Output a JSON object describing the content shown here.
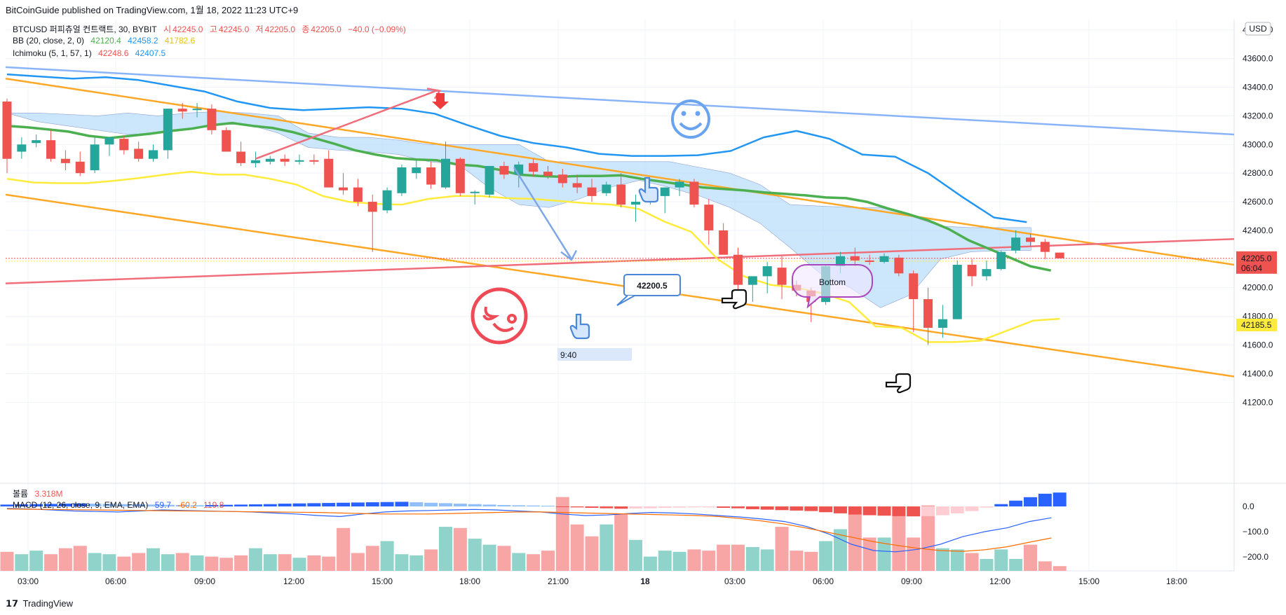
{
  "header": {
    "published": "BitCoinGuide published on TradingView.com, 1월 18, 2022 11:23 UTC+9"
  },
  "legend": {
    "symbol": "BTCUSD 퍼피츄얼 컨트랙트, 30, BYBIT",
    "ohlc": [
      {
        "label": "시",
        "value": "42245.0"
      },
      {
        "label": "고",
        "value": "42245.0"
      },
      {
        "label": "저",
        "value": "42205.0"
      },
      {
        "label": "종",
        "value": "42205.0"
      }
    ],
    "change": "−40.0 (−0.09%)",
    "bb_label": "BB (20, close, 2, 0)",
    "bb_values": [
      "42120.4",
      "42458.2",
      "41782.6"
    ],
    "ichimoku_label": "Ichimoku (5, 1, 57, 1)",
    "ichimoku_values": [
      "42248.6",
      "42407.5"
    ],
    "volume_label": "볼륨",
    "volume_value": "3.318M",
    "macd_label": "MACD (12, 26, close, 9, EMA, EMA)",
    "macd_values": [
      "59.7",
      "-60.2",
      "119.8"
    ]
  },
  "annotations": {
    "price_callout": "42200.5",
    "bottom_label": "Bottom",
    "time_label": "9:40"
  },
  "price_axis": {
    "currency": "USD",
    "ticks": [
      "43800.0",
      "43600.0",
      "43400.0",
      "43200.0",
      "43000.0",
      "42800.0",
      "42600.0",
      "42400.0",
      "42200.0",
      "42000.0",
      "41800.0",
      "41600.0",
      "41400.0",
      "41200.0"
    ],
    "last_price": "42205.0",
    "countdown": "06:04",
    "bb_price": "42185.5"
  },
  "macd_axis": {
    "ticks": [
      "0.0",
      "−100.0",
      "−200.0"
    ]
  },
  "time_axis": {
    "ticks": [
      "03:00",
      "06:00",
      "09:00",
      "12:00",
      "15:00",
      "18:00",
      "21:00",
      "18",
      "03:00",
      "06:00",
      "09:00",
      "12:00",
      "15:00",
      "18:00"
    ]
  },
  "footer": {
    "brand": "TradingView"
  },
  "colors": {
    "up": "#26a69a",
    "down": "#ef5350",
    "bb_mid": "#4caf50",
    "bb_upper": "#2196f3",
    "bb_lower": "#ffeb3b",
    "channel": "#ffa726",
    "trend_red": "#f06e7a",
    "trend_blue": "#8ab4f8",
    "cloud": "#bbdefb"
  },
  "chart_data": {
    "type": "candlestick",
    "symbol": "BTCUSD",
    "interval": "30",
    "ylim": [
      41100,
      43900
    ],
    "candles": [
      [
        43300,
        43320,
        42800,
        42900
      ],
      [
        42950,
        43050,
        42900,
        43000
      ],
      [
        43010,
        43070,
        42980,
        43030
      ],
      [
        43030,
        43100,
        42880,
        42900
      ],
      [
        42900,
        42960,
        42820,
        42870
      ],
      [
        42880,
        42950,
        42780,
        42800
      ],
      [
        42820,
        43050,
        42800,
        43000
      ],
      [
        43000,
        43050,
        42920,
        43050
      ],
      [
        43040,
        43060,
        42930,
        42960
      ],
      [
        42970,
        43020,
        42880,
        42900
      ],
      [
        42900,
        43000,
        42880,
        42960
      ],
      [
        42960,
        43250,
        42900,
        43250
      ],
      [
        43250,
        43290,
        43180,
        43230
      ],
      [
        43240,
        43290,
        43190,
        43250
      ],
      [
        43250,
        43280,
        43070,
        43100
      ],
      [
        43100,
        43120,
        42950,
        42950
      ],
      [
        42950,
        43020,
        42850,
        42870
      ],
      [
        42870,
        42950,
        42840,
        42890
      ],
      [
        42880,
        42920,
        42860,
        42900
      ],
      [
        42900,
        42930,
        42850,
        42880
      ],
      [
        42880,
        42930,
        42860,
        42890
      ],
      [
        42890,
        42930,
        42860,
        42880
      ],
      [
        42900,
        42960,
        42700,
        42700
      ],
      [
        42700,
        42800,
        42650,
        42680
      ],
      [
        42700,
        42760,
        42570,
        42600
      ],
      [
        42600,
        42650,
        42250,
        42530
      ],
      [
        42540,
        42700,
        42520,
        42680
      ],
      [
        42660,
        42860,
        42640,
        42840
      ],
      [
        42800,
        42890,
        42760,
        42840
      ],
      [
        42840,
        42880,
        42690,
        42720
      ],
      [
        42700,
        43020,
        42690,
        42900
      ],
      [
        42900,
        42910,
        42640,
        42660
      ],
      [
        42660,
        42680,
        42580,
        42670
      ],
      [
        42650,
        42850,
        42630,
        42850
      ],
      [
        42850,
        42880,
        42760,
        42790
      ],
      [
        42790,
        42880,
        42700,
        42860
      ],
      [
        42870,
        42900,
        42780,
        42810
      ],
      [
        42810,
        42850,
        42760,
        42780
      ],
      [
        42790,
        42830,
        42700,
        42730
      ],
      [
        42730,
        42790,
        42660,
        42700
      ],
      [
        42700,
        42760,
        42600,
        42640
      ],
      [
        42660,
        42740,
        42640,
        42720
      ],
      [
        42720,
        42800,
        42560,
        42580
      ],
      [
        42580,
        42650,
        42460,
        42600
      ],
      [
        42600,
        42680,
        42580,
        42640
      ],
      [
        42640,
        42700,
        42520,
        42700
      ],
      [
        42700,
        42760,
        42640,
        42740
      ],
      [
        42740,
        42760,
        42560,
        42580
      ],
      [
        42580,
        42620,
        42300,
        42400
      ],
      [
        42400,
        42450,
        42240,
        42230
      ],
      [
        42230,
        42280,
        41980,
        42020
      ],
      [
        42020,
        42060,
        41900,
        42080
      ],
      [
        42080,
        42180,
        41960,
        42150
      ],
      [
        42140,
        42220,
        41920,
        42020
      ],
      [
        42020,
        42050,
        41940,
        41980
      ],
      [
        41980,
        42000,
        41760,
        41900
      ],
      [
        41900,
        42160,
        41880,
        42150
      ],
      [
        42150,
        42250,
        42100,
        42220
      ],
      [
        42220,
        42280,
        42150,
        42190
      ],
      [
        42190,
        42230,
        42160,
        42180
      ],
      [
        42180,
        42240,
        42170,
        42220
      ],
      [
        42210,
        42230,
        42080,
        42100
      ],
      [
        42100,
        42120,
        41690,
        41920
      ],
      [
        41920,
        42000,
        41600,
        41720
      ],
      [
        41720,
        41880,
        41650,
        41780
      ],
      [
        41780,
        42190,
        41780,
        42160
      ],
      [
        42160,
        42200,
        42010,
        42080
      ],
      [
        42080,
        42190,
        42050,
        42130
      ],
      [
        42130,
        42260,
        42120,
        42250
      ],
      [
        42260,
        42400,
        42240,
        42350
      ],
      [
        42350,
        42380,
        42290,
        42320
      ],
      [
        42320,
        42340,
        42200,
        42250
      ],
      [
        42245,
        42245,
        42205,
        42205
      ]
    ],
    "bb_mid_series": [
      43130,
      43120,
      43105,
      43090,
      43060,
      43045,
      43060,
      43075,
      43095,
      43110,
      43135,
      43150,
      43130,
      43115,
      43085,
      43045,
      43005,
      42960,
      42930,
      42905,
      42895,
      42890,
      42860,
      42850,
      42825,
      42790,
      42780,
      42775,
      42780,
      42780,
      42785,
      42760,
      42740,
      42720,
      42700,
      42690,
      42680,
      42665,
      42655,
      42645,
      42630,
      42625,
      42600,
      42555,
      42515,
      42470,
      42410,
      42330,
      42270,
      42210,
      42150,
      42120
    ],
    "bb_upper_series": [
      43490,
      43475,
      43460,
      43470,
      43450,
      43410,
      43370,
      43300,
      43255,
      43240,
      43250,
      43260,
      43250,
      43215,
      43135,
      43060,
      43010,
      42980,
      42935,
      42920,
      42920,
      42925,
      42955,
      43050,
      43095,
      43040,
      42930,
      42915,
      42800,
      42640,
      42490,
      42458
    ],
    "bb_lower_series": [
      42760,
      42735,
      42730,
      42730,
      42745,
      42765,
      42790,
      42810,
      42790,
      42790,
      42760,
      42720,
      42640,
      42600,
      42585,
      42580,
      42620,
      42640,
      42640,
      42625,
      42620,
      42605,
      42590,
      42580,
      42550,
      42460,
      42390,
      42200,
      42080,
      42020,
      42000,
      41960,
      41900,
      41730,
      41720,
      41620,
      41620,
      41630,
      41700,
      41770,
      41783
    ],
    "volume": [
      0.16,
      0.14,
      0.17,
      0.14,
      0.19,
      0.21,
      0.15,
      0.14,
      0.12,
      0.15,
      0.19,
      0.14,
      0.15,
      0.13,
      0.12,
      0.11,
      0.13,
      0.19,
      0.14,
      0.14,
      0.11,
      0.13,
      0.12,
      0.36,
      0.15,
      0.21,
      0.25,
      0.14,
      0.13,
      0.18,
      0.37,
      0.36,
      0.27,
      0.22,
      0.21,
      0.15,
      0.14,
      0.17,
      0.62,
      0.39,
      0.29,
      0.39,
      0.48,
      0.26,
      0.12,
      0.17,
      0.16,
      0.18,
      0.17,
      0.22,
      0.22,
      0.2,
      0.18,
      0.37,
      0.17,
      0.16,
      0.25,
      0.35,
      0.48,
      0.28,
      0.28,
      0.54,
      0.28,
      0.55,
      0.19,
      0.18,
      0.15,
      0.1,
      0.18,
      0.1,
      0.22,
      0.08,
      0.04
    ],
    "macd_hist": [
      8,
      9,
      10,
      11,
      12,
      13,
      12,
      11,
      10,
      9,
      8,
      7,
      6,
      5,
      6,
      7,
      8,
      9,
      10,
      12,
      13,
      14,
      15,
      16,
      17,
      18,
      19,
      20,
      18,
      16,
      14,
      12,
      10,
      8,
      6,
      5,
      4,
      3,
      -2,
      -4,
      -6,
      -8,
      -10,
      -9,
      -8,
      -6,
      -5,
      -4,
      -4,
      -6,
      -8,
      -12,
      -14,
      -16,
      -18,
      -20,
      -25,
      -30,
      -35,
      -38,
      -40,
      -42,
      -43,
      -42,
      -38,
      -30,
      -20,
      -5,
      10,
      25,
      40,
      55,
      60
    ]
  }
}
